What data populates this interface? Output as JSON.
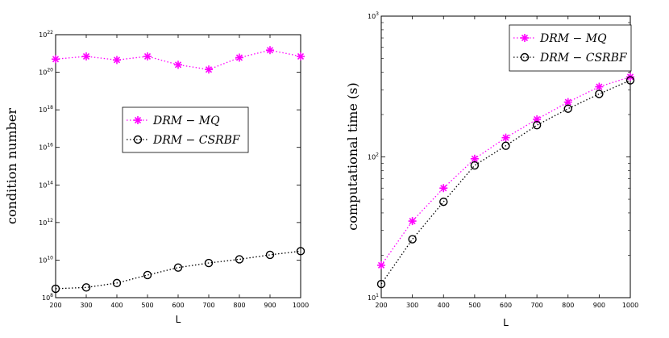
{
  "chart_data": [
    {
      "type": "line",
      "title": "",
      "xlabel": "L",
      "ylabel": "condition number",
      "yscale": "log",
      "x": [
        200,
        300,
        400,
        500,
        600,
        700,
        800,
        900,
        1000
      ],
      "xlim": [
        200,
        1000
      ],
      "ylim_exponent": [
        8,
        22
      ],
      "y_tick_base": "10",
      "y_tick_exponents": [
        "8",
        "10",
        "12",
        "14",
        "16",
        "18",
        "20",
        "22"
      ],
      "x_tick_labels": [
        "200",
        "300",
        "400",
        "500",
        "600",
        "700",
        "800",
        "900",
        "1000"
      ],
      "legend_location": "center",
      "series": [
        {
          "name": "DRM − MQ",
          "color": "#ff00ff",
          "marker": "asterisk",
          "linestyle": "dotted",
          "values": [
            5e+20,
            7e+20,
            4.5e+20,
            7e+20,
            2.5e+20,
            1.4e+20,
            6e+20,
            1.5e+21,
            7e+20
          ]
        },
        {
          "name": "DRM − CSRBF",
          "color": "#000000",
          "marker": "circle",
          "linestyle": "dotted",
          "values": [
            300000000.0,
            350000000.0,
            600000000.0,
            1600000000.0,
            4000000000.0,
            7000000000.0,
            11000000000.0,
            19000000000.0,
            30000000000.0
          ]
        }
      ]
    },
    {
      "type": "line",
      "title": "",
      "xlabel": "L",
      "ylabel": "computational time (s)",
      "yscale": "log",
      "x": [
        200,
        300,
        400,
        500,
        600,
        700,
        800,
        900,
        1000
      ],
      "xlim": [
        200,
        1000
      ],
      "ylim_exponent": [
        1,
        3
      ],
      "y_tick_base": "10",
      "y_tick_exponents": [
        "1",
        "2",
        "3"
      ],
      "x_tick_labels": [
        "200",
        "300",
        "400",
        "500",
        "600",
        "700",
        "800",
        "900",
        "1000"
      ],
      "legend_location": "top-left",
      "series": [
        {
          "name": "DRM − MQ",
          "color": "#ff00ff",
          "marker": "asterisk",
          "linestyle": "dotted",
          "values": [
            17,
            35,
            60,
            97,
            137,
            185,
            245,
            315,
            370
          ]
        },
        {
          "name": "DRM − CSRBF",
          "color": "#000000",
          "marker": "circle",
          "linestyle": "dotted",
          "values": [
            12.5,
            26,
            48,
            87,
            120,
            168,
            220,
            280,
            350
          ]
        }
      ]
    }
  ]
}
